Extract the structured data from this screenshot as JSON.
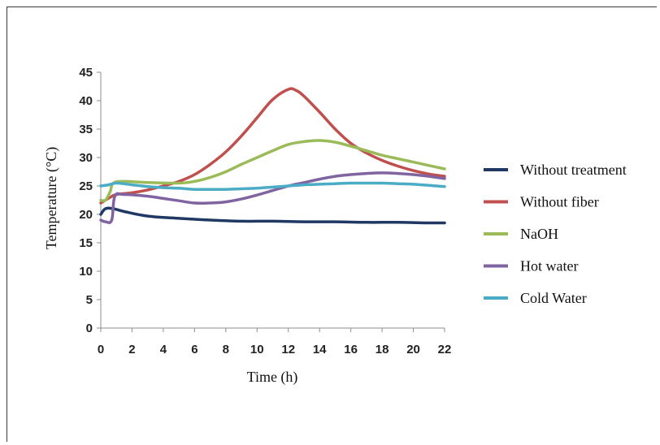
{
  "chart_data": {
    "type": "line",
    "xlabel": "Time (h)",
    "ylabel": "Temperature (°C)",
    "xlim": [
      0,
      22
    ],
    "ylim": [
      0,
      45
    ],
    "xticks": [
      "0",
      "2",
      "4",
      "6",
      "8",
      "10",
      "12",
      "14",
      "16",
      "18",
      "20",
      "22"
    ],
    "yticks": [
      "0",
      "5",
      "10",
      "15",
      "20",
      "25",
      "30",
      "35",
      "40",
      "45"
    ],
    "grid": false,
    "legend_position": "right",
    "series": [
      {
        "name": "Without treatment",
        "color": "#1f3864",
        "points": [
          [
            0,
            20
          ],
          [
            0.3,
            21
          ],
          [
            0.8,
            21
          ],
          [
            1.5,
            20.5
          ],
          [
            3,
            19.7
          ],
          [
            5,
            19.3
          ],
          [
            7,
            19
          ],
          [
            9,
            18.8
          ],
          [
            11,
            18.8
          ],
          [
            13,
            18.7
          ],
          [
            15,
            18.7
          ],
          [
            17,
            18.6
          ],
          [
            19,
            18.6
          ],
          [
            21,
            18.5
          ],
          [
            22,
            18.5
          ]
        ]
      },
      {
        "name": "Without fiber",
        "color": "#c0504d",
        "points": [
          [
            0,
            22
          ],
          [
            0.3,
            22.5
          ],
          [
            0.6,
            23
          ],
          [
            1,
            23.5
          ],
          [
            2,
            23.8
          ],
          [
            3,
            24.3
          ],
          [
            4,
            25
          ],
          [
            5,
            25.8
          ],
          [
            6,
            27
          ],
          [
            7,
            28.8
          ],
          [
            8,
            31
          ],
          [
            9,
            33.8
          ],
          [
            10,
            37
          ],
          [
            11,
            40.2
          ],
          [
            12,
            42
          ],
          [
            12.5,
            41.8
          ],
          [
            13,
            40.8
          ],
          [
            14,
            38
          ],
          [
            15,
            35
          ],
          [
            16,
            32.5
          ],
          [
            17,
            30.8
          ],
          [
            18,
            29.5
          ],
          [
            19,
            28.5
          ],
          [
            20,
            27.7
          ],
          [
            21,
            27.1
          ],
          [
            22,
            26.7
          ]
        ]
      },
      {
        "name": "NaOH",
        "color": "#9bbb59",
        "points": [
          [
            0,
            22.5
          ],
          [
            0.3,
            22.5
          ],
          [
            0.6,
            24
          ],
          [
            0.8,
            25.5
          ],
          [
            1.5,
            25.8
          ],
          [
            3,
            25.6
          ],
          [
            5,
            25.5
          ],
          [
            6,
            25.8
          ],
          [
            7,
            26.5
          ],
          [
            8,
            27.5
          ],
          [
            9,
            28.8
          ],
          [
            10,
            30
          ],
          [
            11,
            31.2
          ],
          [
            12,
            32.3
          ],
          [
            13,
            32.8
          ],
          [
            14,
            33
          ],
          [
            15,
            32.7
          ],
          [
            16,
            32
          ],
          [
            17,
            31.2
          ],
          [
            18,
            30.4
          ],
          [
            19,
            29.8
          ],
          [
            20,
            29.2
          ],
          [
            21,
            28.6
          ],
          [
            22,
            28
          ]
        ]
      },
      {
        "name": "Hot water",
        "color": "#8064a2",
        "points": [
          [
            0,
            19
          ],
          [
            0.3,
            18.7
          ],
          [
            0.7,
            19
          ],
          [
            0.9,
            23.2
          ],
          [
            1.5,
            23.5
          ],
          [
            3,
            23.2
          ],
          [
            4,
            22.8
          ],
          [
            5,
            22.4
          ],
          [
            6,
            22
          ],
          [
            7,
            22
          ],
          [
            8,
            22.2
          ],
          [
            9,
            22.7
          ],
          [
            10,
            23.4
          ],
          [
            11,
            24.2
          ],
          [
            12,
            25
          ],
          [
            13,
            25.6
          ],
          [
            14,
            26.2
          ],
          [
            15,
            26.7
          ],
          [
            16,
            27
          ],
          [
            17,
            27.2
          ],
          [
            18,
            27.3
          ],
          [
            19,
            27.2
          ],
          [
            20,
            27
          ],
          [
            21,
            26.7
          ],
          [
            22,
            26.3
          ]
        ]
      },
      {
        "name": "Cold Water",
        "color": "#4bacc6",
        "points": [
          [
            0,
            25
          ],
          [
            0.5,
            25.2
          ],
          [
            1,
            25.5
          ],
          [
            2,
            25.2
          ],
          [
            3,
            24.9
          ],
          [
            4,
            24.7
          ],
          [
            5,
            24.6
          ],
          [
            6,
            24.4
          ],
          [
            7,
            24.4
          ],
          [
            8,
            24.4
          ],
          [
            9,
            24.5
          ],
          [
            10,
            24.6
          ],
          [
            11,
            24.8
          ],
          [
            12,
            25
          ],
          [
            13,
            25.2
          ],
          [
            14,
            25.3
          ],
          [
            15,
            25.4
          ],
          [
            16,
            25.5
          ],
          [
            17,
            25.5
          ],
          [
            18,
            25.5
          ],
          [
            19,
            25.4
          ],
          [
            20,
            25.3
          ],
          [
            21,
            25.1
          ],
          [
            22,
            24.9
          ]
        ]
      }
    ]
  }
}
